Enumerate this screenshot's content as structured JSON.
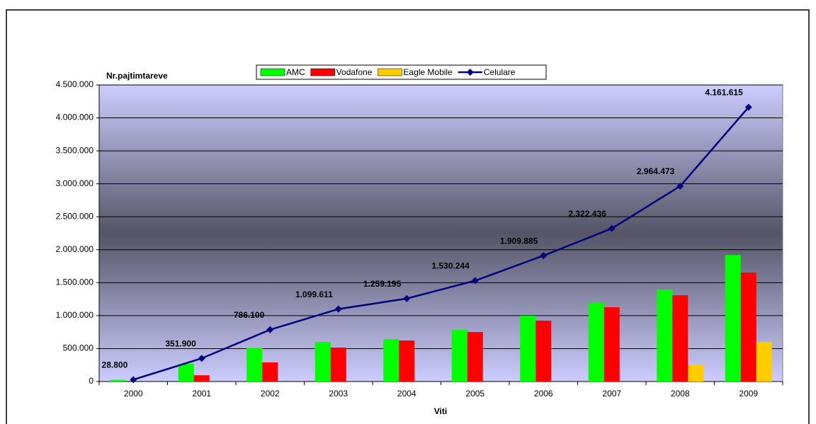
{
  "chart_data": {
    "type": "bar_line",
    "x_label": "Viti",
    "y_label": "Nr.pajtimtareve",
    "categories": [
      "2000",
      "2001",
      "2002",
      "2003",
      "2004",
      "2005",
      "2006",
      "2007",
      "2008",
      "2009"
    ],
    "series": [
      {
        "name": "AMC",
        "type": "bar",
        "color": "#00ff00",
        "values": [
          25000,
          268000,
          504000,
          601000,
          644000,
          783000,
          998000,
          1191000,
          1395000,
          1920000
        ]
      },
      {
        "name": "Vodafone",
        "type": "bar",
        "color": "#ff0000",
        "values": [
          null,
          95000,
          290000,
          515000,
          622000,
          751000,
          923000,
          1127000,
          1309000,
          1652000
        ]
      },
      {
        "name": "Eagle Mobile",
        "type": "bar",
        "color": "#ffcc00",
        "values": [
          null,
          null,
          null,
          null,
          null,
          null,
          null,
          null,
          257000,
          600000
        ]
      },
      {
        "name": "Celulare",
        "type": "line",
        "color": "#000080",
        "values": [
          28800,
          351900,
          786100,
          1099611,
          1259195,
          1530244,
          1909885,
          2322436,
          2964473,
          4161615
        ],
        "value_labels": [
          "28.800",
          "351.900",
          "786.100",
          "1.099.611",
          "1.259.195",
          "1.530.244",
          "1.909.885",
          "2.322.436",
          "2.964.473",
          "4.161.615"
        ]
      }
    ],
    "ylim": [
      0,
      4500000
    ],
    "yticks": [
      0,
      {
        "value": 500000,
        "label": "500.000"
      },
      {
        "value": 1000000,
        "label": "1.000.000"
      },
      {
        "value": 1500000,
        "label": "1.500.000"
      },
      {
        "value": 2000000,
        "label": "2.000.000"
      },
      {
        "value": 2500000,
        "label": "2.500.000"
      },
      {
        "value": 3000000,
        "label": "3.000.000"
      },
      {
        "value": 3500000,
        "label": "3.500.000"
      },
      {
        "value": 4000000,
        "label": "4.000.000"
      },
      {
        "value": 4500000,
        "label": "4.500.000"
      }
    ],
    "grid": true,
    "legend": "top"
  }
}
